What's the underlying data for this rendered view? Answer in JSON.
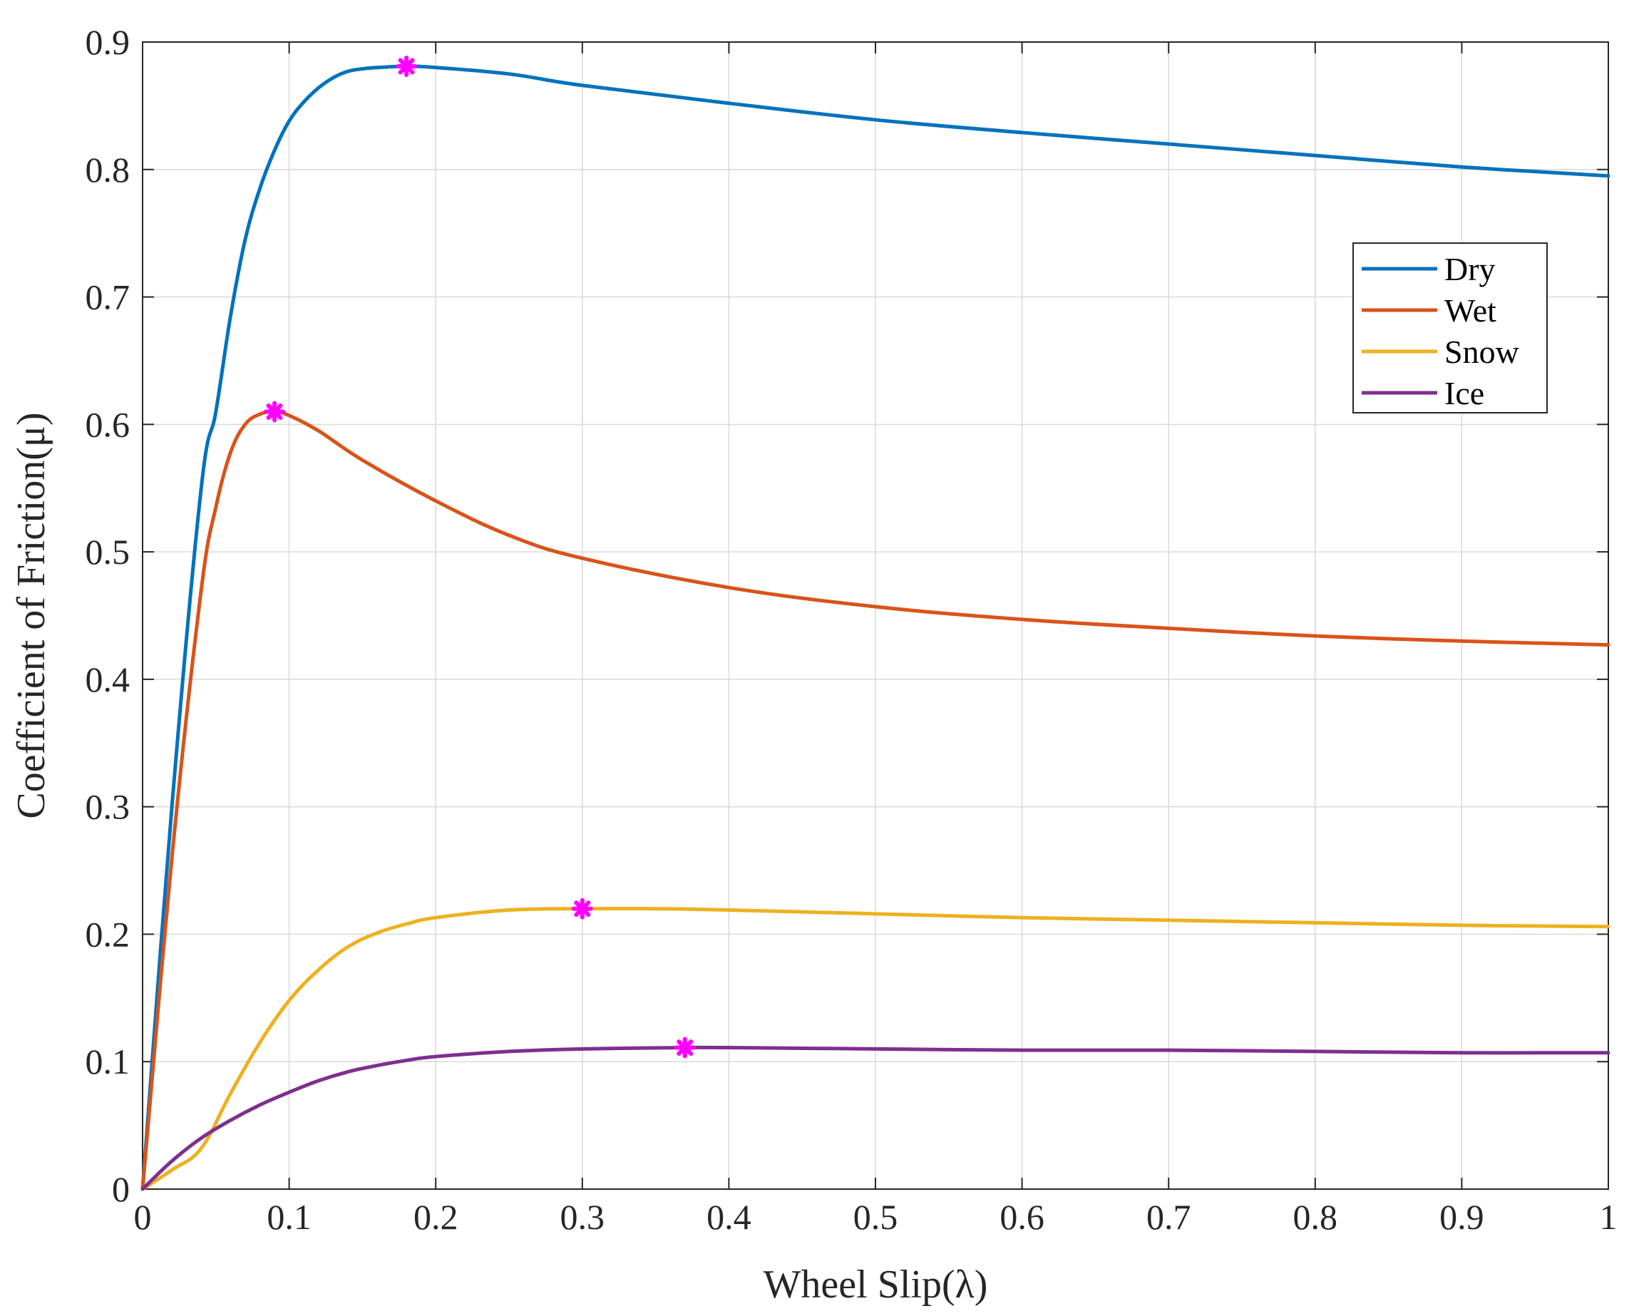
{
  "chart_data": {
    "type": "line",
    "xlabel": "Wheel Slip(λ)",
    "ylabel": "Coefficient of Friction(μ)",
    "xlim": [
      0,
      1
    ],
    "ylim": [
      0,
      0.9
    ],
    "xticks": [
      "0",
      "0.1",
      "0.2",
      "0.3",
      "0.4",
      "0.5",
      "0.6",
      "0.7",
      "0.8",
      "0.9",
      "1"
    ],
    "yticks": [
      "0",
      "0.1",
      "0.2",
      "0.3",
      "0.4",
      "0.5",
      "0.6",
      "0.7",
      "0.8",
      "0.9"
    ],
    "grid": true,
    "legend_position": "upper-right",
    "series": [
      {
        "name": "Dry",
        "color": "#0072BD",
        "x": [
          0,
          0.02,
          0.04,
          0.05,
          0.06,
          0.07,
          0.08,
          0.09,
          0.1,
          0.11,
          0.12,
          0.13,
          0.14,
          0.15,
          0.16,
          0.18,
          0.2,
          0.25,
          0.3,
          0.4,
          0.5,
          0.6,
          0.7,
          0.8,
          0.9,
          1.0
        ],
        "y": [
          0,
          0.3,
          0.55,
          0.61,
          0.685,
          0.745,
          0.785,
          0.815,
          0.838,
          0.853,
          0.864,
          0.872,
          0.877,
          0.879,
          0.88,
          0.881,
          0.88,
          0.875,
          0.866,
          0.852,
          0.839,
          0.829,
          0.82,
          0.811,
          0.802,
          0.795
        ]
      },
      {
        "name": "Wet",
        "color": "#D95319",
        "x": [
          0,
          0.02,
          0.04,
          0.05,
          0.06,
          0.07,
          0.08,
          0.09,
          0.1,
          0.12,
          0.15,
          0.2,
          0.25,
          0.3,
          0.4,
          0.5,
          0.6,
          0.7,
          0.8,
          0.9,
          1.0
        ],
        "y": [
          0,
          0.26,
          0.47,
          0.535,
          0.578,
          0.6,
          0.608,
          0.61,
          0.607,
          0.595,
          0.572,
          0.54,
          0.513,
          0.495,
          0.472,
          0.457,
          0.447,
          0.44,
          0.434,
          0.43,
          0.427
        ]
      },
      {
        "name": "Snow",
        "color": "#EDB120",
        "x": [
          0,
          0.02,
          0.04,
          0.06,
          0.08,
          0.1,
          0.12,
          0.14,
          0.16,
          0.18,
          0.2,
          0.25,
          0.3,
          0.35,
          0.4,
          0.5,
          0.6,
          0.7,
          0.8,
          0.9,
          1.0
        ],
        "y": [
          0,
          0.015,
          0.032,
          0.075,
          0.115,
          0.148,
          0.172,
          0.19,
          0.201,
          0.208,
          0.213,
          0.219,
          0.22,
          0.22,
          0.219,
          0.216,
          0.213,
          0.211,
          0.209,
          0.207,
          0.206
        ]
      },
      {
        "name": "Ice",
        "color": "#7E2F8E",
        "x": [
          0,
          0.02,
          0.04,
          0.06,
          0.08,
          0.1,
          0.12,
          0.14,
          0.16,
          0.18,
          0.2,
          0.25,
          0.3,
          0.37,
          0.4,
          0.5,
          0.6,
          0.7,
          0.8,
          0.9,
          1.0
        ],
        "y": [
          0,
          0.022,
          0.04,
          0.054,
          0.066,
          0.076,
          0.085,
          0.092,
          0.097,
          0.101,
          0.104,
          0.108,
          0.11,
          0.111,
          0.111,
          0.11,
          0.109,
          0.109,
          0.108,
          0.107,
          0.107
        ]
      }
    ],
    "peak_markers": {
      "color": "#FF00FF",
      "points": [
        {
          "x": 0.18,
          "y": 0.881
        },
        {
          "x": 0.09,
          "y": 0.61
        },
        {
          "x": 0.3,
          "y": 0.22
        },
        {
          "x": 0.37,
          "y": 0.111
        }
      ]
    }
  }
}
